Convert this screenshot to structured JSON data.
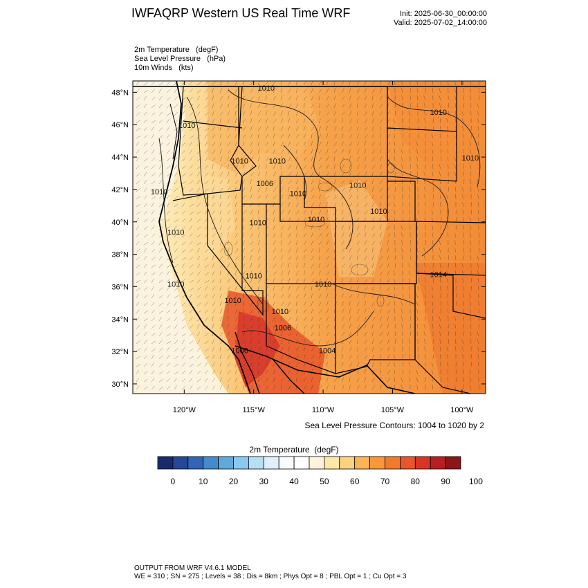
{
  "header": {
    "title": "IWFAQRP Western US Real Time WRF",
    "init": "Init: 2025-06-30_00:00:00",
    "valid": "Valid: 2025-07-02_14:00:00"
  },
  "fields": {
    "temp": "2m Temperature   (degF)",
    "slp": "Sea Level Pressure   (hPa)",
    "wind": "10m Winds   (kts)"
  },
  "map": {
    "lat_ticks": [
      48,
      46,
      44,
      42,
      40,
      38,
      36,
      34,
      32,
      30
    ],
    "lat_labels": [
      "48°N",
      "46°N",
      "44°N",
      "42°N",
      "40°N",
      "38°N",
      "36°N",
      "34°N",
      "32°N",
      "30°N"
    ],
    "lon_ticks": [
      -120,
      -115,
      -110,
      -105,
      -100
    ],
    "lon_labels": [
      "120°W",
      "115°W",
      "110°W",
      "105°W",
      "100°W"
    ],
    "extent": {
      "lon_min": -123.7,
      "lon_max": -98.3,
      "lat_min": 29.4,
      "lat_max": 48.7
    },
    "contour_labels": [
      {
        "text": "1010",
        "lon": -114.1,
        "lat": 48.1
      },
      {
        "text": "1010",
        "lon": -119.8,
        "lat": 45.8
      },
      {
        "text": "1010",
        "lon": -116.0,
        "lat": 43.6
      },
      {
        "text": "1010",
        "lon": -113.3,
        "lat": 43.6
      },
      {
        "text": "1006",
        "lon": -114.2,
        "lat": 42.2
      },
      {
        "text": "1010",
        "lon": -121.8,
        "lat": 41.7
      },
      {
        "text": "1010",
        "lon": -111.8,
        "lat": 41.6
      },
      {
        "text": "1010",
        "lon": -107.5,
        "lat": 42.1
      },
      {
        "text": "1010",
        "lon": -106.0,
        "lat": 40.5
      },
      {
        "text": "1010",
        "lon": -114.7,
        "lat": 39.8
      },
      {
        "text": "1010",
        "lon": -120.6,
        "lat": 39.2
      },
      {
        "text": "1010",
        "lon": -110.5,
        "lat": 40.0
      },
      {
        "text": "1010",
        "lon": -101.7,
        "lat": 46.6
      },
      {
        "text": "1010",
        "lon": -99.4,
        "lat": 43.8
      },
      {
        "text": "1010",
        "lon": -120.6,
        "lat": 36.0
      },
      {
        "text": "1010",
        "lon": -115.0,
        "lat": 36.5
      },
      {
        "text": "1010",
        "lon": -110.0,
        "lat": 36.0
      },
      {
        "text": "1010",
        "lon": -116.5,
        "lat": 35.0
      },
      {
        "text": "1010",
        "lon": -113.1,
        "lat": 34.3
      },
      {
        "text": "1006",
        "lon": -112.9,
        "lat": 33.3
      },
      {
        "text": "1006",
        "lon": -116.0,
        "lat": 31.9
      },
      {
        "text": "1004",
        "lon": -109.7,
        "lat": 31.9
      },
      {
        "text": "1014",
        "lon": -101.7,
        "lat": 36.6
      }
    ]
  },
  "colorbar": {
    "title": "2m Temperature  (degF)",
    "colors": [
      "#1a2b6d",
      "#24479a",
      "#2f66b5",
      "#438ccb",
      "#5fa9dc",
      "#8ac8ef",
      "#b6dff6",
      "#ddf0fb",
      "#f7fbff",
      "#ffffff",
      "#fff4d9",
      "#ffe7a8",
      "#fdd27e",
      "#fbb554",
      "#f8983a",
      "#f27a2d",
      "#e85729",
      "#d93425",
      "#b81f22",
      "#8c1517"
    ],
    "labels": [
      "0",
      "10",
      "20",
      "30",
      "40",
      "50",
      "60",
      "70",
      "80",
      "90",
      "100"
    ]
  },
  "slp_note": "Sea Level Pressure Contours: 1004 to 1020 by 2",
  "footer": {
    "line1": "OUTPUT FROM WRF V4.6.1 MODEL",
    "line2": "WE = 310 ; SN = 275 ; Levels = 38 ; Dis = 8km ; Phys Opt = 8 ; PBL Opt = 1 ; Cu Opt = 3"
  }
}
